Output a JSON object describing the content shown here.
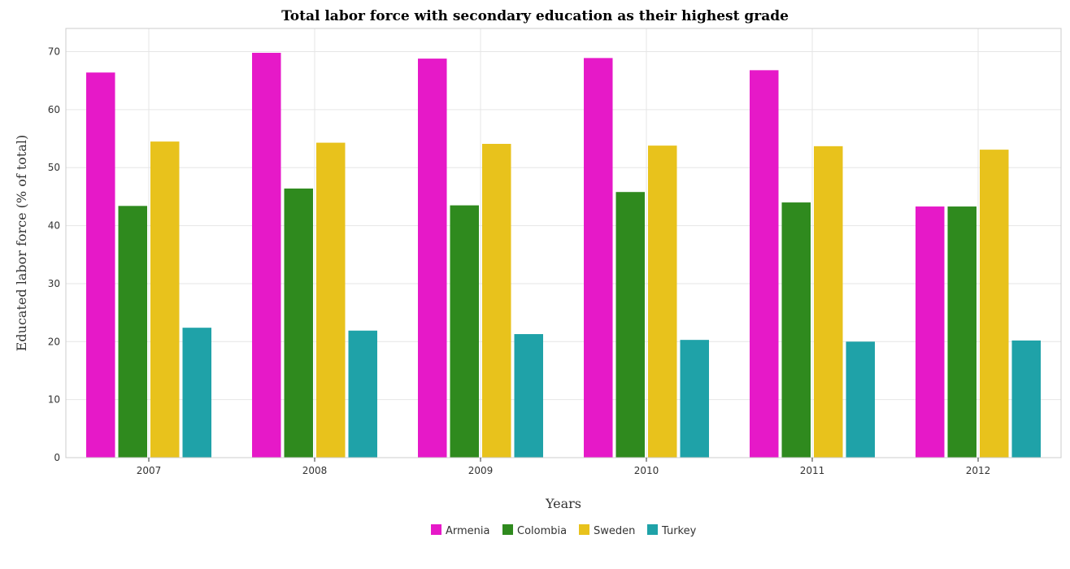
{
  "chart_data": {
    "type": "bar",
    "title": "Total labor force with secondary education as their highest grade",
    "xlabel": "Years",
    "ylabel": "Educated labor force (% of total)",
    "categories": [
      "2007",
      "2008",
      "2009",
      "2010",
      "2011",
      "2012"
    ],
    "ylim": [
      0,
      74
    ],
    "yticks": [
      0,
      10,
      20,
      30,
      40,
      50,
      60,
      70
    ],
    "grid": true,
    "legend_position": "bottom-center",
    "series": [
      {
        "name": "Armenia",
        "color": "#e619c8",
        "values": [
          66.4,
          69.8,
          68.8,
          68.9,
          66.8,
          43.3
        ]
      },
      {
        "name": "Colombia",
        "color": "#2f8a1e",
        "values": [
          43.4,
          46.4,
          43.5,
          45.8,
          44.0,
          43.3
        ]
      },
      {
        "name": "Sweden",
        "color": "#e8c21c",
        "values": [
          54.5,
          54.3,
          54.1,
          53.8,
          53.7,
          53.1
        ]
      },
      {
        "name": "Turkey",
        "color": "#1fa2a8",
        "values": [
          22.4,
          21.9,
          21.3,
          20.3,
          20.0,
          20.2
        ]
      }
    ]
  }
}
